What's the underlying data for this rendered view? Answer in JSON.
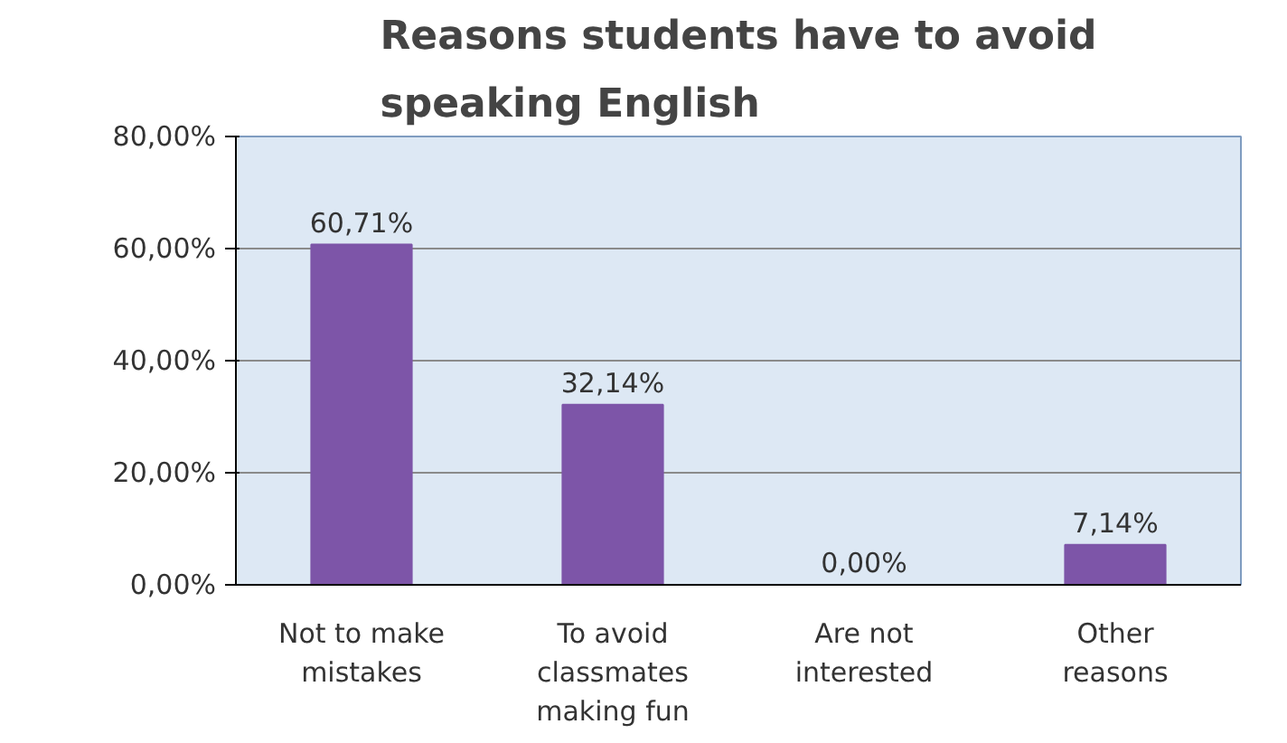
{
  "chart_data": {
    "type": "bar",
    "title": "Reasons students have to avoid speaking English",
    "categories": [
      "Not to make mistakes",
      "To avoid classmates making fun",
      "Are not interested",
      "Other reasons"
    ],
    "values": [
      60.71,
      32.14,
      0,
      7.14
    ],
    "value_labels": [
      "60,71%",
      "32,14%",
      "0,00%",
      "7,14%"
    ],
    "color": "#7d55a8",
    "ylim": [
      0,
      80
    ],
    "yticks": [
      {
        "value": 0,
        "label": "0,00%"
      },
      {
        "value": 20,
        "label": "20,00%"
      },
      {
        "value": 40,
        "label": "40,00%"
      },
      {
        "value": 60,
        "label": "60,00%"
      },
      {
        "value": 80,
        "label": "80,00%"
      }
    ],
    "grid": "y"
  }
}
